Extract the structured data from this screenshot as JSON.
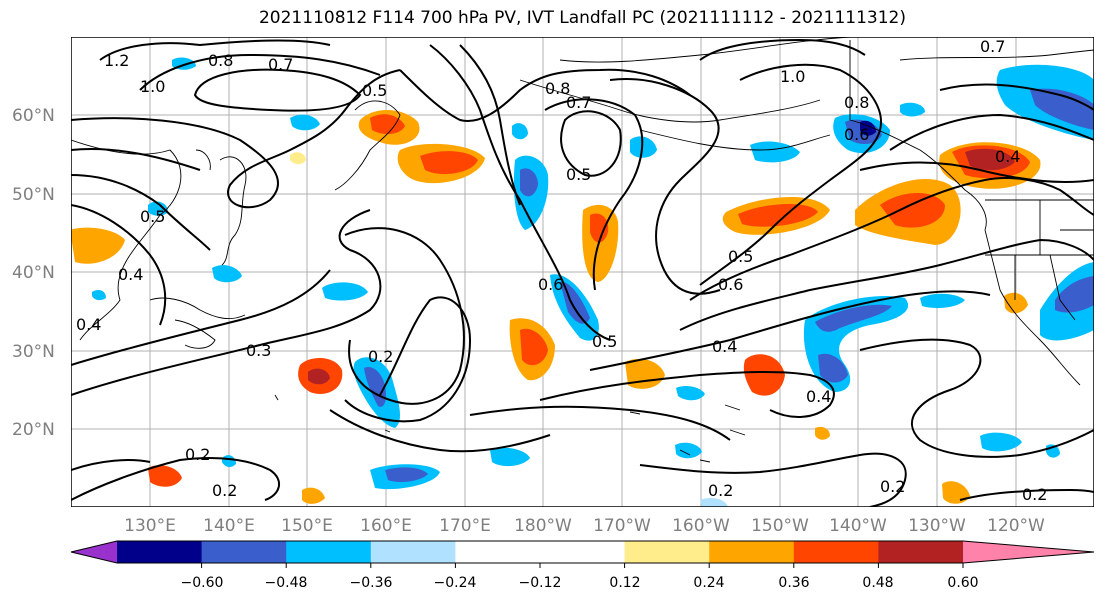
{
  "title": "2021110812 F114 700 hPa PV, IVT Landfall PC (2021111112 - 2021111312)",
  "lat_labels": [
    "60°N",
    "50°N",
    "40°N",
    "30°N",
    "20°N"
  ],
  "lon_labels": [
    "130°E",
    "140°E",
    "150°E",
    "160°E",
    "170°E",
    "180°W",
    "170°W",
    "160°W",
    "150°W",
    "140°W",
    "130°W",
    "120°W"
  ],
  "contour_labels": [
    "1.2",
    "1.0",
    "0.8",
    "0.7",
    "0.5",
    "0.8",
    "0.7",
    "0.5",
    "1.0",
    "0.8",
    "0.6",
    "0.7",
    "0.4",
    "0.5",
    "0.6",
    "0.5",
    "0.4",
    "0.6",
    "0.5",
    "0.4",
    "0.3",
    "0.2",
    "0.4",
    "0.2",
    "0.2",
    "0.2",
    "0.2",
    "0.2",
    "0.4"
  ],
  "colorbar": {
    "ticks": [
      "−0.60",
      "−0.48",
      "−0.36",
      "−0.24",
      "−0.12",
      "0.12",
      "0.24",
      "0.36",
      "0.48",
      "0.60"
    ],
    "colors": [
      "#9932cc",
      "#00008b",
      "#3a5fcd",
      "#00bfff",
      "#b0e2ff",
      "#ffffff",
      "#ffffff",
      "#ffec8b",
      "#ffa500",
      "#ff4500",
      "#b22222",
      "#ff82ab"
    ]
  }
}
